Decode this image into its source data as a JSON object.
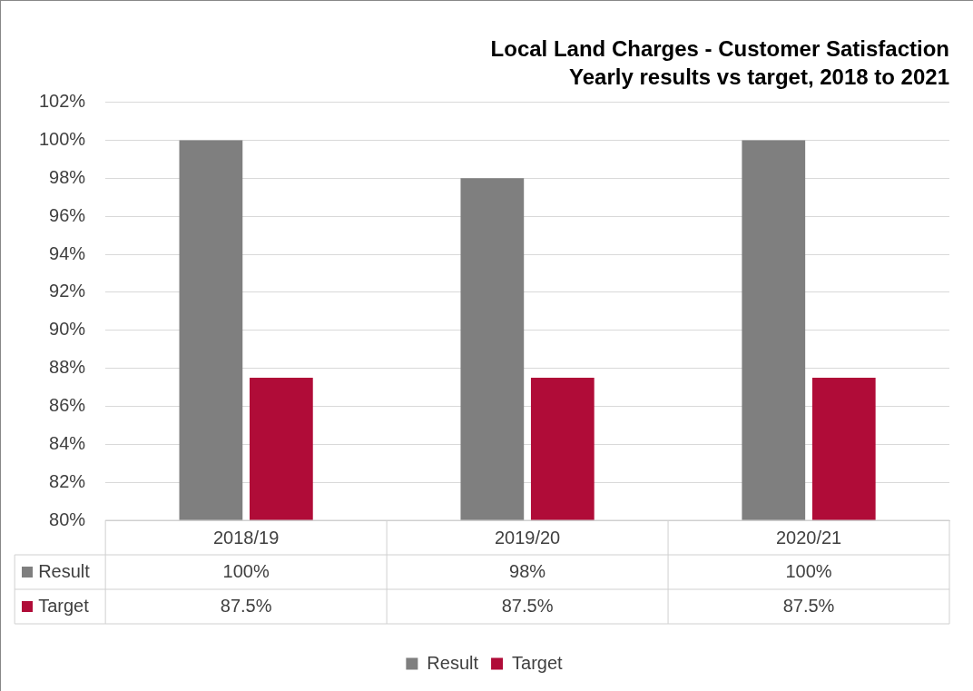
{
  "chart_data": {
    "type": "bar",
    "title": "Local Land Charges - Customer Satisfaction",
    "subtitle": "Yearly results vs target, 2018 to 2021",
    "categories": [
      "2018/19",
      "2019/20",
      "2020/21"
    ],
    "series": [
      {
        "name": "Result",
        "color": "#7f7f7f",
        "values": [
          100,
          98,
          100
        ],
        "value_labels": [
          "100%",
          "98%",
          "100%"
        ]
      },
      {
        "name": "Target",
        "color": "#b00c38",
        "values": [
          87.5,
          87.5,
          87.5
        ],
        "value_labels": [
          "87.5%",
          "87.5%",
          "87.5%"
        ]
      }
    ],
    "ylim": [
      80,
      102
    ],
    "yticks": [
      {
        "value": 80,
        "label": "80%"
      },
      {
        "value": 82,
        "label": "82%"
      },
      {
        "value": 84,
        "label": "84%"
      },
      {
        "value": 86,
        "label": "86%"
      },
      {
        "value": 88,
        "label": "88%"
      },
      {
        "value": 90,
        "label": "90%"
      },
      {
        "value": 92,
        "label": "92%"
      },
      {
        "value": 94,
        "label": "94%"
      },
      {
        "value": 96,
        "label": "96%"
      },
      {
        "value": 98,
        "label": "98%"
      },
      {
        "value": 100,
        "label": "100%"
      },
      {
        "value": 102,
        "label": "102%"
      }
    ],
    "grid": "y",
    "legend": "bottom"
  }
}
